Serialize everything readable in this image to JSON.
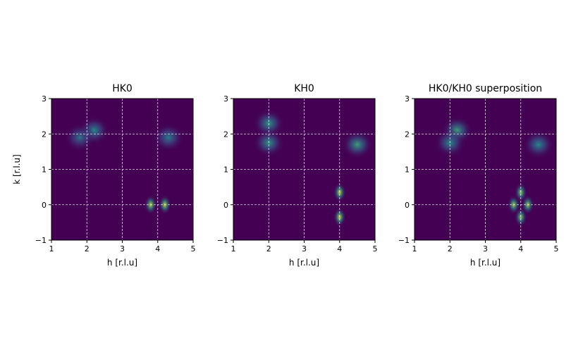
{
  "chart_data": [
    {
      "type": "heatmap",
      "title": "HK0",
      "xlabel": "h [r.l.u]",
      "ylabel": "k [r.l.u]",
      "xlim": [
        1,
        5
      ],
      "ylim": [
        -1,
        3
      ],
      "xticks": [
        "1",
        "2",
        "3",
        "4",
        "5"
      ],
      "yticks": [
        "−1",
        "0",
        "1",
        "2",
        "3"
      ],
      "grid": true,
      "colormap": "viridis",
      "background_color": "#440154",
      "features": [
        {
          "h": 3.8,
          "k": 0.0,
          "intensity": 0.95
        },
        {
          "h": 4.2,
          "k": 0.0,
          "intensity": 0.95
        },
        {
          "h": 2.2,
          "k": 2.1,
          "intensity": 0.5
        },
        {
          "h": 1.8,
          "k": 1.9,
          "intensity": 0.4
        },
        {
          "h": 4.3,
          "k": 1.9,
          "intensity": 0.45
        }
      ]
    },
    {
      "type": "heatmap",
      "title": "KH0",
      "xlabel": "h [r.l.u]",
      "ylabel": "",
      "xlim": [
        1,
        5
      ],
      "ylim": [
        -1,
        3
      ],
      "xticks": [
        "1",
        "2",
        "3",
        "4",
        "5"
      ],
      "yticks": [
        "−1",
        "0",
        "1",
        "2",
        "3"
      ],
      "grid": true,
      "colormap": "viridis",
      "background_color": "#440154",
      "features": [
        {
          "h": 4.0,
          "k": 0.35,
          "intensity": 0.95
        },
        {
          "h": 4.0,
          "k": -0.35,
          "intensity": 0.95
        },
        {
          "h": 2.0,
          "k": 2.3,
          "intensity": 0.55
        },
        {
          "h": 2.0,
          "k": 1.75,
          "intensity": 0.55
        },
        {
          "h": 4.5,
          "k": 1.7,
          "intensity": 0.6
        }
      ]
    },
    {
      "type": "heatmap",
      "title": "HK0/KH0 superposition",
      "xlabel": "h [r.l.u]",
      "ylabel": "",
      "xlim": [
        1,
        5
      ],
      "ylim": [
        -1,
        3
      ],
      "xticks": [
        "1",
        "2",
        "3",
        "4",
        "5"
      ],
      "yticks": [
        "−1",
        "0",
        "1",
        "2",
        "3"
      ],
      "grid": true,
      "colormap": "viridis",
      "background_color": "#440154",
      "features": [
        {
          "h": 3.8,
          "k": 0.0,
          "intensity": 0.9
        },
        {
          "h": 4.2,
          "k": 0.0,
          "intensity": 0.9
        },
        {
          "h": 4.0,
          "k": 0.35,
          "intensity": 0.85
        },
        {
          "h": 4.0,
          "k": -0.35,
          "intensity": 0.85
        },
        {
          "h": 2.2,
          "k": 2.1,
          "intensity": 0.6
        },
        {
          "h": 2.0,
          "k": 1.75,
          "intensity": 0.5
        },
        {
          "h": 4.5,
          "k": 1.7,
          "intensity": 0.5
        }
      ]
    }
  ]
}
